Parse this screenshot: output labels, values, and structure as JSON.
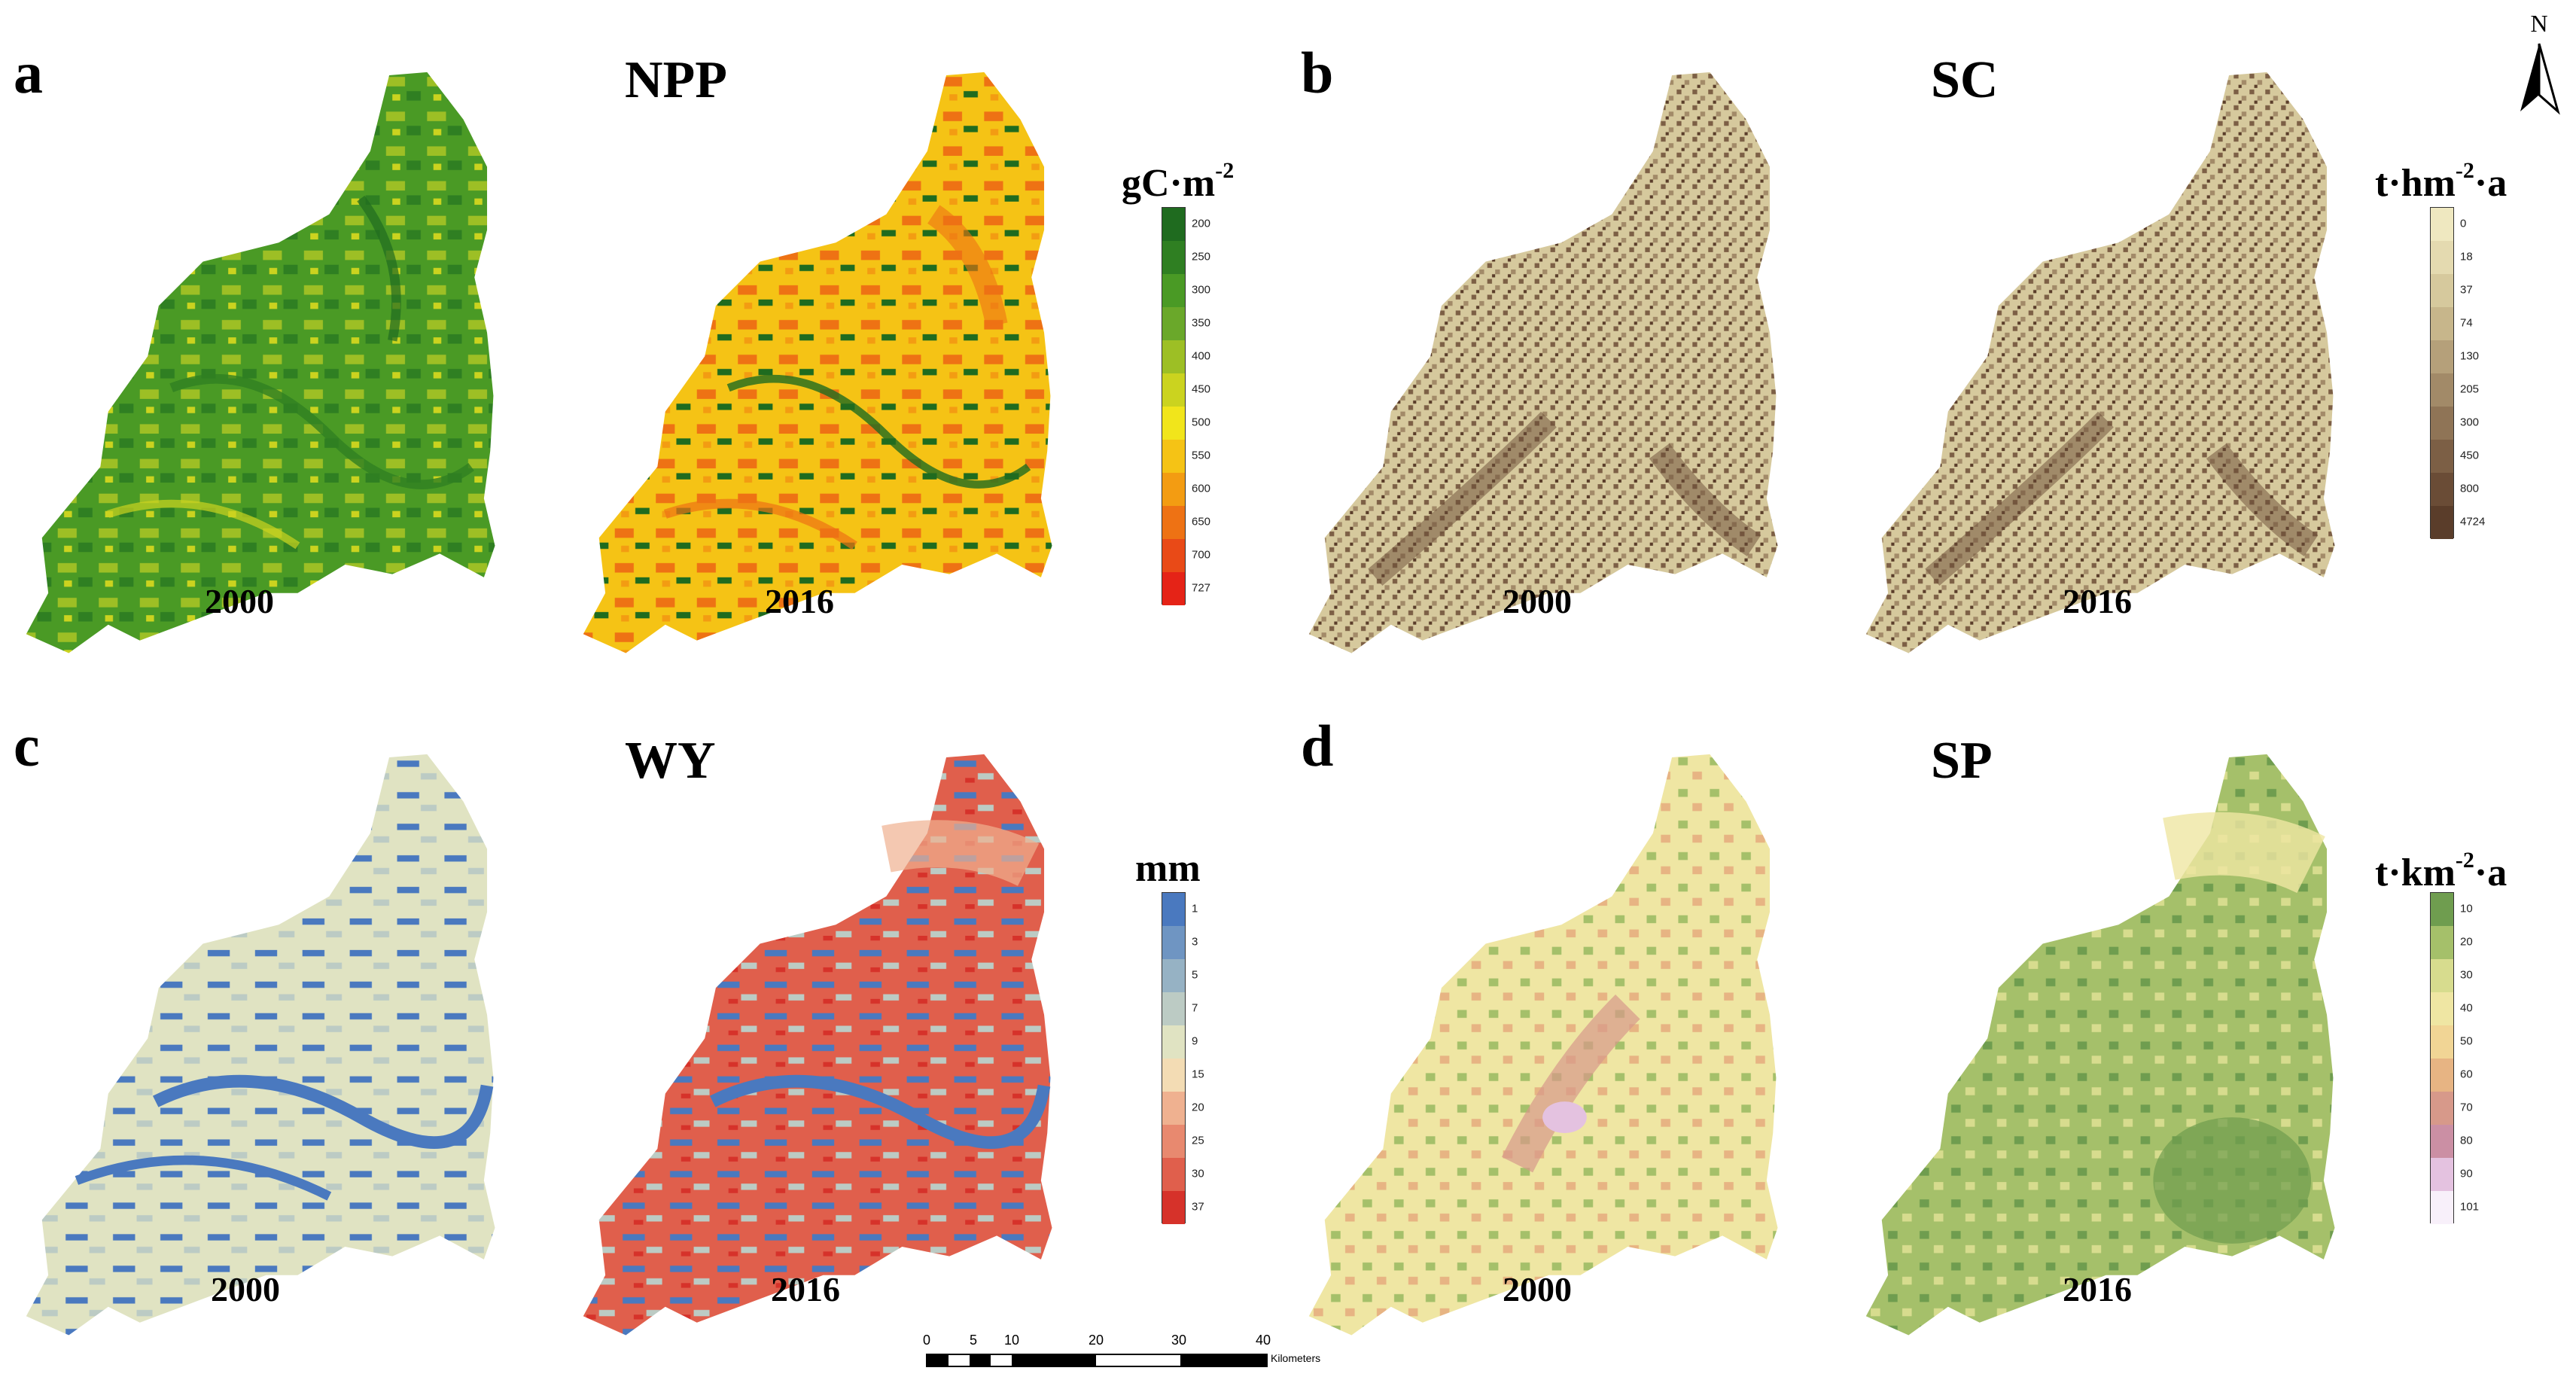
{
  "panels": {
    "a": {
      "letter": "a",
      "title": "NPP",
      "year_left": "2000",
      "year_right": "2016",
      "unit_pre": "gC·m",
      "unit_sup": "-2",
      "unit_post": "",
      "legend": [
        "200",
        "250",
        "300",
        "350",
        "400",
        "450",
        "500",
        "550",
        "600",
        "650",
        "700",
        "727"
      ],
      "colors": [
        "#1f6b1f",
        "#2f7f22",
        "#4a9a25",
        "#6aa82a",
        "#9dbf25",
        "#cbd31f",
        "#f1e51b",
        "#f5c315",
        "#f39c12",
        "#ee7214",
        "#e94a17",
        "#e52317"
      ]
    },
    "b": {
      "letter": "b",
      "title": "SC",
      "year_left": "2000",
      "year_right": "2016",
      "unit_pre": "t·hm",
      "unit_sup": "-2",
      "unit_post": "·a",
      "legend": [
        "0",
        "18",
        "37",
        "74",
        "130",
        "205",
        "300",
        "450",
        "800",
        "4724"
      ],
      "colors": [
        "#efe8c0",
        "#e4dab0",
        "#d6c99d",
        "#c7b68b",
        "#b5a07a",
        "#a28a68",
        "#8f7456",
        "#7c5f45",
        "#6a4c36",
        "#5a3d2a"
      ]
    },
    "c": {
      "letter": "c",
      "title": "WY",
      "year_left": "2000",
      "year_right": "2016",
      "unit_pre": "mm",
      "unit_sup": "",
      "unit_post": "",
      "legend": [
        "1",
        "3",
        "5",
        "7",
        "9",
        "15",
        "20",
        "25",
        "30",
        "37"
      ],
      "colors": [
        "#4a79bf",
        "#6f95c2",
        "#96b2c4",
        "#bccbc4",
        "#e0e3c2",
        "#f3dcb4",
        "#efb190",
        "#e8896f",
        "#e05f4c",
        "#d6322a"
      ]
    },
    "d": {
      "letter": "d",
      "title": "SP",
      "year_left": "2000",
      "year_right": "2016",
      "unit_pre": "t·km",
      "unit_sup": "-2",
      "unit_post": "·a",
      "legend": [
        "10",
        "20",
        "30",
        "40",
        "50",
        "60",
        "70",
        "80",
        "90",
        "101"
      ],
      "colors": [
        "#6f9d4f",
        "#a5c06a",
        "#d7dc8e",
        "#efe6a3",
        "#f1d595",
        "#e7b483",
        "#d7998a",
        "#cb8fa4",
        "#e4c2e0",
        "#f8f0fa"
      ]
    }
  },
  "north_label": "N",
  "scale": {
    "ticks": [
      "0",
      "5",
      "10",
      "20",
      "30",
      "40"
    ],
    "unit": "Kilometers"
  }
}
